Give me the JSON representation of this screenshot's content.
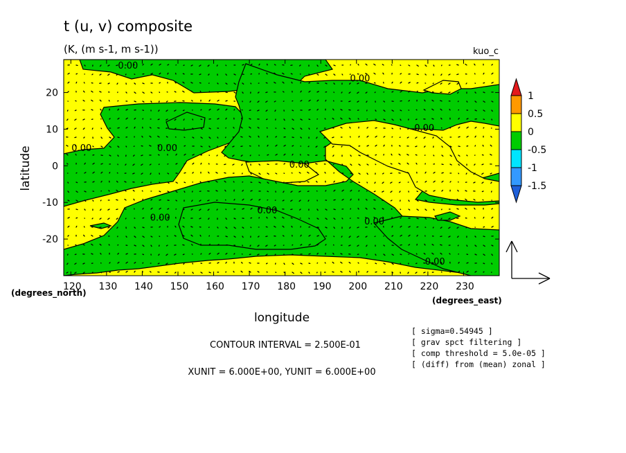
{
  "chart_data": {
    "type": "contour",
    "title": "t (u, v) composite",
    "subtitle": "(K, (m s-1, m s-1))",
    "case_label": "kuo_c",
    "xlabel": "longitude",
    "ylabel": "latitude",
    "x_unit_label": "(degrees_east)",
    "y_unit_label": "(degrees_north)",
    "xlim": [
      118,
      240
    ],
    "ylim": [
      -30,
      29
    ],
    "x_ticks": [
      "120",
      "130",
      "140",
      "150",
      "160",
      "170",
      "180",
      "190",
      "200",
      "210",
      "220",
      "230"
    ],
    "y_ticks": [
      "20",
      "10",
      "0",
      "-10",
      "-20"
    ],
    "contour_interval_text": "CONTOUR INTERVAL = 2.500E-01",
    "vector_unit_text": "XUNIT = 6.000E+00, YUNIT = 6.000E+00",
    "contour_labels": [
      {
        "text": "0.00",
        "lon": 136,
        "lat": 26.5
      },
      {
        "text": "0.00",
        "lon": 123,
        "lat": 4
      },
      {
        "text": "0.00",
        "lon": 147,
        "lat": 4
      },
      {
        "text": "0.00",
        "lon": 201,
        "lat": 23
      },
      {
        "text": "0.00",
        "lon": 219,
        "lat": 9.5
      },
      {
        "text": "0.00",
        "lon": 184,
        "lat": -0.5
      },
      {
        "text": "0.00",
        "lon": 145,
        "lat": -15
      },
      {
        "text": "0.00",
        "lon": 175,
        "lat": -13
      },
      {
        "text": "0.00",
        "lon": 205,
        "lat": -16
      },
      {
        "text": "0.00",
        "lon": 222,
        "lat": -27
      }
    ],
    "colorbar": {
      "levels": [
        "1",
        "0.5",
        "0",
        "-0.5",
        "-1",
        "-1.5"
      ],
      "colors": [
        "#e41a1c",
        "#ff9900",
        "#ffff00",
        "#00cc00",
        "#00e5ff",
        "#3399ff",
        "#1e5fd9"
      ]
    },
    "field_colors": {
      "positive": "#ffff00",
      "negative": "#00cc00"
    },
    "notes": [
      "[ sigma=0.54945 ]",
      "[ grav spct filtering ]",
      "[ comp threshold = 5.0e-05 ]",
      "[ (diff) from (mean) zonal ]"
    ]
  }
}
